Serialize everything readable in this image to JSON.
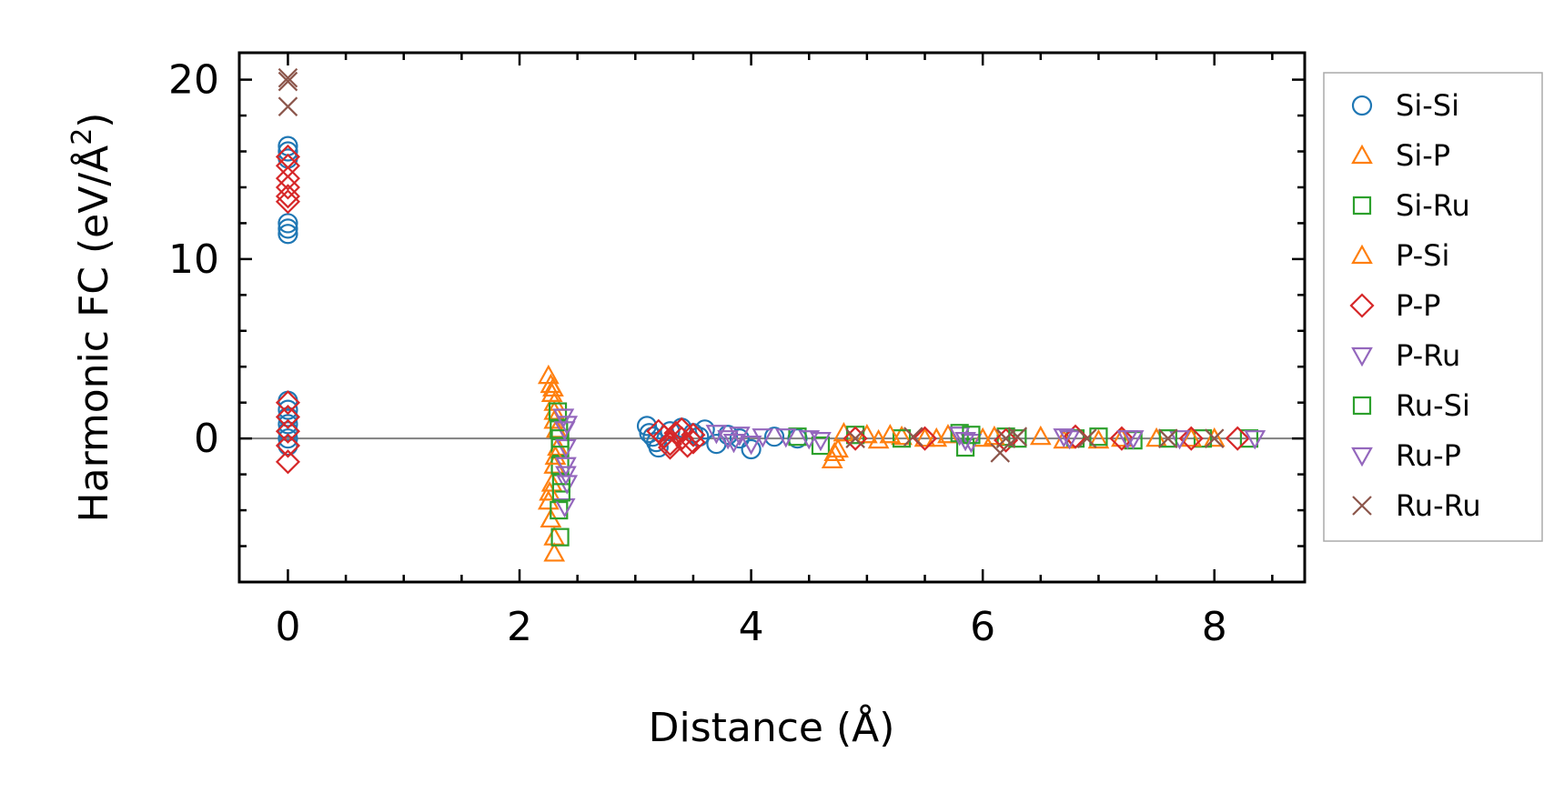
{
  "chart_data": {
    "type": "scatter",
    "title": "",
    "xlabel": "Distance (Å)",
    "ylabel": "Harmonic FC (eV/Å",
    "ylabel_sup": "2",
    "ylabel_end": ")",
    "xlim": [
      -0.42,
      8.78
    ],
    "ylim": [
      -8.0,
      21.5
    ],
    "x_ticks": [
      0,
      2,
      4,
      6,
      8
    ],
    "x_tick_labels": [
      "0",
      "2",
      "4",
      "6",
      "8"
    ],
    "y_ticks": [
      0,
      10,
      20
    ],
    "y_tick_labels": [
      "0",
      "10",
      "20"
    ],
    "grid": false,
    "legend_position": "outside-right",
    "reference_line_y": 0,
    "series": [
      {
        "name": "Si-Si",
        "marker": "circle",
        "color": "#1f77b4",
        "x": [
          0,
          0,
          0,
          0,
          0,
          0,
          0,
          0,
          0,
          0,
          0,
          0,
          0,
          3.1,
          3.12,
          3.15,
          3.18,
          3.2,
          3.3,
          3.4,
          3.5,
          3.55,
          3.6,
          3.7,
          3.8,
          3.9,
          4.0,
          4.2,
          4.4
        ],
        "y": [
          16.3,
          16.0,
          15.6,
          12.0,
          11.7,
          11.4,
          2.1,
          1.6,
          1.2,
          0.8,
          0.4,
          0.0,
          -0.4,
          0.7,
          0.3,
          0.1,
          -0.2,
          -0.5,
          0.4,
          0.6,
          0.3,
          0.1,
          0.5,
          -0.3,
          0.2,
          0.0,
          -0.6,
          0.1,
          0.0
        ]
      },
      {
        "name": "Si-P",
        "marker": "triangle-up",
        "color": "#ff7f0e",
        "x": [
          2.25,
          2.27,
          2.28,
          2.3,
          2.3,
          2.3,
          2.32,
          2.33,
          2.3,
          2.28,
          2.25,
          2.27,
          2.3,
          2.3,
          4.7,
          4.75,
          4.8,
          5.0,
          5.1,
          5.3,
          5.5,
          5.7,
          6.0,
          6.5,
          7.0,
          7.5,
          8.0
        ],
        "y": [
          3.5,
          3.0,
          2.5,
          2.0,
          1.5,
          1.0,
          0.5,
          -0.5,
          -1.5,
          -2.5,
          -3.5,
          -4.5,
          -5.5,
          -6.4,
          -1.2,
          -0.6,
          0.3,
          0.2,
          -0.1,
          0.1,
          0.0,
          0.2,
          0.0,
          0.1,
          -0.1,
          0.0,
          0.0
        ]
      },
      {
        "name": "Si-Ru",
        "marker": "square",
        "color": "#2ca02c",
        "x": [
          2.33,
          2.34,
          2.35,
          2.35,
          2.36,
          2.34,
          2.35,
          4.4,
          4.6,
          4.9,
          5.3,
          5.8,
          5.85,
          6.2,
          6.8,
          7.3,
          7.9,
          8.3
        ],
        "y": [
          1.5,
          0.5,
          -0.5,
          -1.5,
          -2.5,
          -4.0,
          -5.5,
          0.1,
          -0.4,
          0.2,
          0.0,
          0.3,
          -0.5,
          0.1,
          0.0,
          -0.1,
          0.0,
          0.0
        ]
      },
      {
        "name": "P-Si",
        "marker": "triangle-up",
        "color": "#ff7f0e",
        "x": [
          2.29,
          2.31,
          2.26,
          4.72,
          5.2,
          5.6,
          6.1,
          6.7,
          7.2,
          7.8
        ],
        "y": [
          2.8,
          -1.0,
          -3.0,
          -0.8,
          0.2,
          0.0,
          0.1,
          -0.1,
          0.0,
          0.0
        ]
      },
      {
        "name": "P-P",
        "marker": "diamond",
        "color": "#d62728",
        "x": [
          0,
          0,
          0,
          0,
          0,
          0,
          0,
          0,
          0,
          0,
          0,
          3.2,
          3.25,
          3.3,
          3.35,
          3.4,
          3.45,
          3.5,
          3.3,
          3.4,
          3.5,
          4.9,
          5.5,
          6.2,
          6.8,
          7.2,
          7.8,
          8.2
        ],
        "y": [
          15.7,
          15.2,
          14.5,
          14.0,
          13.5,
          13.2,
          2.0,
          1.2,
          0.4,
          -0.4,
          -1.3,
          0.4,
          0.1,
          -0.3,
          0.3,
          0.0,
          -0.4,
          0.2,
          -0.5,
          0.5,
          -0.2,
          0.0,
          0.0,
          -0.1,
          0.1,
          0.0,
          0.0,
          0.0
        ]
      },
      {
        "name": "P-Ru",
        "marker": "triangle-down",
        "color": "#9467bd",
        "x": [
          2.38,
          2.39,
          2.4,
          2.4,
          2.41,
          2.39,
          3.7,
          3.8,
          3.9,
          4.0,
          4.3,
          4.6,
          5.8,
          5.9,
          6.7,
          7.3,
          7.7,
          8.35
        ],
        "y": [
          1.2,
          0.5,
          -0.5,
          -1.5,
          -2.5,
          -3.8,
          0.3,
          0.0,
          0.2,
          -0.3,
          0.1,
          -0.1,
          0.2,
          -0.2,
          0.1,
          0.0,
          0.0,
          0.0
        ]
      },
      {
        "name": "Ru-Si",
        "marker": "square",
        "color": "#2ca02c",
        "x": [
          2.35,
          2.36,
          5.9,
          6.3,
          7.0,
          7.6
        ],
        "y": [
          0.0,
          -3.0,
          0.2,
          0.0,
          0.1,
          0.0
        ]
      },
      {
        "name": "Ru-P",
        "marker": "triangle-down",
        "color": "#9467bd",
        "x": [
          2.41,
          2.4,
          3.85,
          4.1,
          4.5,
          5.85,
          6.75,
          7.25
        ],
        "y": [
          0.8,
          -2.0,
          -0.2,
          0.1,
          0.0,
          -0.1,
          0.0,
          0.0
        ]
      },
      {
        "name": "Ru-Ru",
        "marker": "x",
        "color": "#8c564b",
        "x": [
          0,
          0,
          0,
          4.9,
          5.4,
          6.15,
          6.2,
          6.3,
          6.9,
          7.6,
          8.0
        ],
        "y": [
          20.1,
          19.9,
          18.5,
          0.0,
          0.1,
          -0.8,
          0.0,
          0.1,
          0.0,
          0.0,
          0.0
        ]
      }
    ]
  }
}
